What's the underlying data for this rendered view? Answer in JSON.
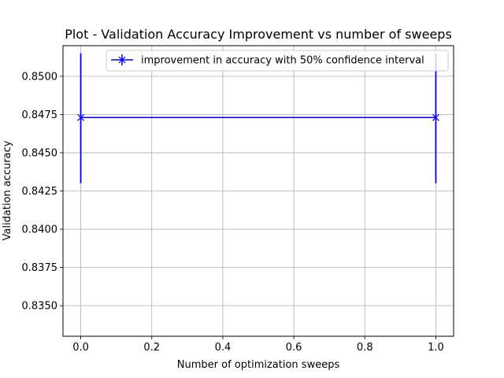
{
  "chart_data": {
    "type": "line",
    "title": "Plot - Validation Accuracy Improvement vs number of sweeps",
    "xlabel": "Number of optimization sweeps",
    "ylabel": "Validation accuracy",
    "xlim": [
      -0.05,
      1.05
    ],
    "ylim": [
      0.833,
      0.852
    ],
    "xticks": [
      0.0,
      0.2,
      0.4,
      0.6,
      0.8,
      1.0
    ],
    "xtick_labels": [
      "0.0",
      "0.2",
      "0.4",
      "0.6",
      "0.8",
      "1.0"
    ],
    "yticks": [
      0.835,
      0.8375,
      0.84,
      0.8425,
      0.845,
      0.8475,
      0.85
    ],
    "ytick_labels": [
      "0.8350",
      "0.8375",
      "0.8400",
      "0.8425",
      "0.8450",
      "0.8475",
      "0.8500"
    ],
    "grid": true,
    "legend_position": "top-right",
    "series": [
      {
        "name": "improvement in accuracy with 50% confidence interval",
        "color": "#0000ff",
        "marker": "x",
        "x": [
          0,
          1
        ],
        "y": [
          0.8473,
          0.8473
        ],
        "yerr_low": [
          0.843,
          0.843
        ],
        "yerr_high": [
          0.8515,
          0.8515
        ]
      }
    ]
  }
}
